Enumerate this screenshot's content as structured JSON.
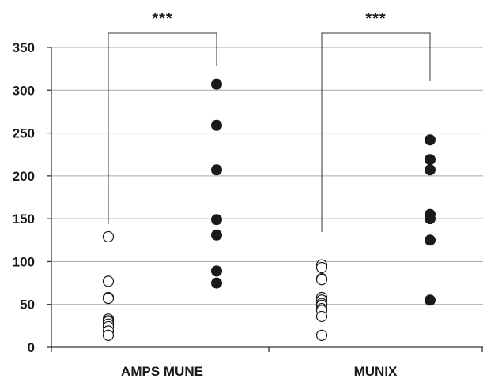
{
  "chart_data": {
    "type": "scatter",
    "title": "",
    "xlabel": "",
    "ylabel": "",
    "ylim": [
      0,
      350
    ],
    "yticks": [
      "0",
      "50",
      "100",
      "150",
      "200",
      "250",
      "300",
      "350"
    ],
    "grid": true,
    "categories": [
      "AMPS MUNE",
      "MUNIX"
    ],
    "groups": [
      {
        "category": "AMPS MUNE",
        "open": [
          129,
          77,
          58,
          57,
          33,
          31,
          30,
          27,
          24,
          19,
          14
        ],
        "filled": [
          307,
          259,
          207,
          149,
          131,
          89,
          75
        ],
        "significance": "***"
      },
      {
        "category": "MUNIX",
        "open": [
          96,
          93,
          80,
          79,
          58,
          55,
          51,
          49,
          45,
          43,
          36,
          14
        ],
        "filled": [
          242,
          219,
          207,
          155,
          150,
          125,
          55
        ],
        "significance": "***"
      }
    ],
    "colors": {
      "open_marker_fill": "#ffffff",
      "open_marker_stroke": "#1a1a1a",
      "filled_marker": "#1a1a1a",
      "grid": "#a6a6a6"
    }
  }
}
